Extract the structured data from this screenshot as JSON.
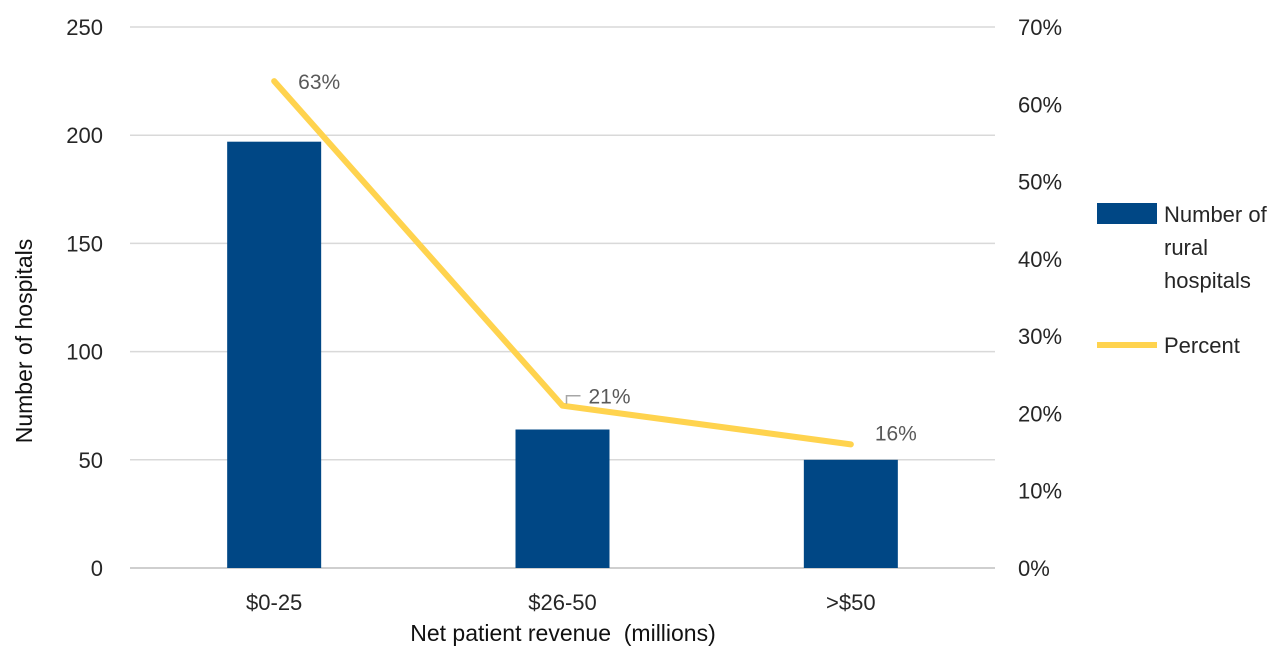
{
  "chart_data": {
    "type": "bar",
    "categories": [
      "$0-25",
      "$26-50",
      ">$50"
    ],
    "series": [
      {
        "name": "Number of rural hospitals",
        "type": "bar",
        "axis": "left",
        "color": "#004785",
        "values": [
          197,
          64,
          50
        ]
      },
      {
        "name": "Percent",
        "type": "line",
        "axis": "right",
        "color": "#FFD34E",
        "values": [
          63,
          21,
          16
        ],
        "data_labels": [
          "63%",
          "21%",
          "16%"
        ]
      }
    ],
    "title": "",
    "xlabel": "Net patient revenue  (millions)",
    "ylabel": "Number of hospitals",
    "ylim": [
      0,
      250
    ],
    "yticks": [
      "0",
      "50",
      "100",
      "150",
      "200",
      "250"
    ],
    "y2lim": [
      0,
      70
    ],
    "y2ticks": [
      "0%",
      "10%",
      "20%",
      "30%",
      "40%",
      "50%",
      "60%",
      "70%"
    ],
    "grid": true,
    "legend": {
      "placement": "right",
      "entries": [
        {
          "lines": [
            "Number of",
            "rural",
            "hospitals"
          ],
          "color": "#004785",
          "kind": "bar"
        },
        {
          "lines": [
            "Percent"
          ],
          "color": "#FFD34E",
          "kind": "line"
        }
      ]
    }
  }
}
